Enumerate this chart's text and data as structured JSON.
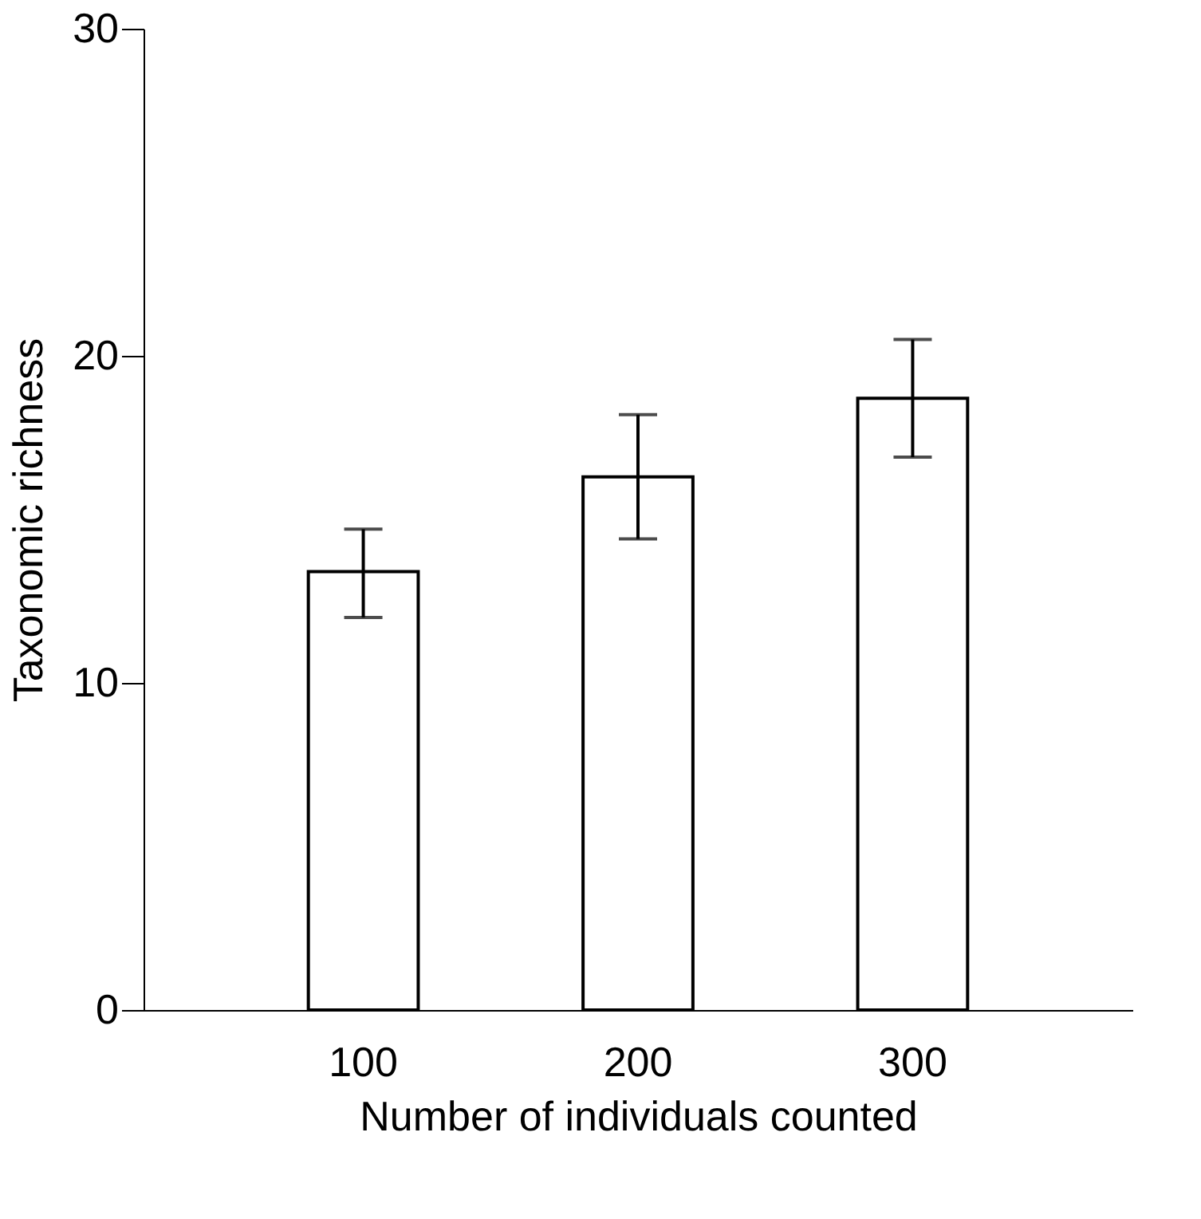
{
  "chart_data": {
    "type": "bar",
    "categories": [
      "100",
      "200",
      "300"
    ],
    "values": [
      13.4,
      16.3,
      18.7
    ],
    "errors": [
      [
        12.0,
        14.7
      ],
      [
        14.4,
        18.2
      ],
      [
        16.9,
        20.5
      ]
    ],
    "color": "#ffffff",
    "xlabel": "Number of individuals counted",
    "ylabel": "Taxonomic richness",
    "ylim": [
      0,
      30
    ],
    "yticks": [
      0,
      10,
      20,
      30
    ],
    "grid": false
  }
}
